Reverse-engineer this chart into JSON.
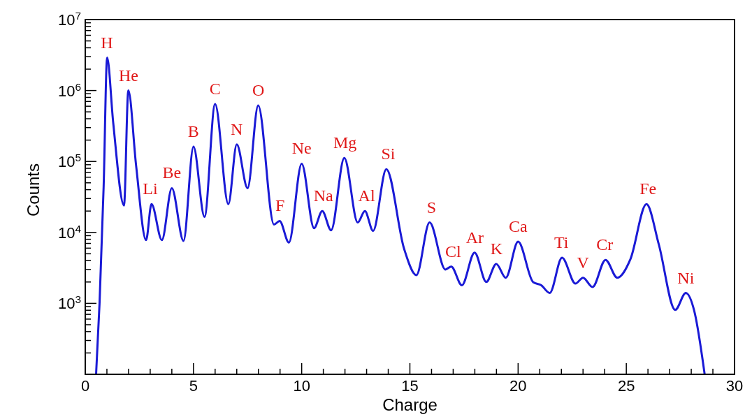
{
  "chart_data": {
    "type": "line",
    "xlabel": "Charge",
    "ylabel": "Counts",
    "log": "y",
    "grid": false,
    "line_style": "solid",
    "xlim": [
      0,
      30
    ],
    "xticks": [
      0,
      {
        "value": 1,
        "label": null
      },
      {
        "value": 2,
        "label": null
      },
      {
        "value": 3,
        "label": null
      },
      {
        "value": 4,
        "label": null
      },
      5,
      {
        "value": 6,
        "label": null
      },
      {
        "value": 7,
        "label": null
      },
      {
        "value": 8,
        "label": null
      },
      {
        "value": 9,
        "label": null
      },
      10,
      {
        "value": 11,
        "label": null
      },
      {
        "value": 12,
        "label": null
      },
      {
        "value": 13,
        "label": null
      },
      {
        "value": 14,
        "label": null
      },
      15,
      {
        "value": 16,
        "label": null
      },
      {
        "value": 17,
        "label": null
      },
      {
        "value": 18,
        "label": null
      },
      {
        "value": 19,
        "label": null
      },
      20,
      {
        "value": 21,
        "label": null
      },
      {
        "value": 22,
        "label": null
      },
      {
        "value": 23,
        "label": null
      },
      {
        "value": 24,
        "label": null
      },
      25,
      {
        "value": 26,
        "label": null
      },
      {
        "value": 27,
        "label": null
      },
      {
        "value": 28,
        "label": null
      },
      {
        "value": 29,
        "label": null
      },
      30
    ],
    "ylim": [
      100,
      10000000
    ],
    "yticks": [
      {
        "value": 100,
        "label": null
      },
      {
        "value": 200,
        "label": null
      },
      {
        "value": 300,
        "label": null
      },
      {
        "value": 400,
        "label": null
      },
      {
        "value": 500,
        "label": null
      },
      {
        "value": 600,
        "label": null
      },
      {
        "value": 700,
        "label": null
      },
      {
        "value": 800,
        "label": null
      },
      {
        "value": 900,
        "label": null
      },
      {
        "value": 1000,
        "label": "10$^{3}$"
      },
      {
        "value": 2000,
        "label": null
      },
      {
        "value": 3000,
        "label": null
      },
      {
        "value": 4000,
        "label": null
      },
      {
        "value": 5000,
        "label": null
      },
      {
        "value": 6000,
        "label": null
      },
      {
        "value": 7000,
        "label": null
      },
      {
        "value": 8000,
        "label": null
      },
      {
        "value": 9000,
        "label": null
      },
      {
        "value": 10000,
        "label": "10$^{4}$"
      },
      {
        "value": 20000,
        "label": null
      },
      {
        "value": 30000,
        "label": null
      },
      {
        "value": 40000,
        "label": null
      },
      {
        "value": 50000,
        "label": null
      },
      {
        "value": 60000,
        "label": null
      },
      {
        "value": 70000,
        "label": null
      },
      {
        "value": 80000,
        "label": null
      },
      {
        "value": 90000,
        "label": null
      },
      {
        "value": 100000,
        "label": "10$^{5}$"
      },
      {
        "value": 200000,
        "label": null
      },
      {
        "value": 300000,
        "label": null
      },
      {
        "value": 400000,
        "label": null
      },
      {
        "value": 500000,
        "label": null
      },
      {
        "value": 600000,
        "label": null
      },
      {
        "value": 700000,
        "label": null
      },
      {
        "value": 800000,
        "label": null
      },
      {
        "value": 900000,
        "label": null
      },
      {
        "value": 1000000,
        "label": "10$^{6}$"
      },
      {
        "value": 2000000,
        "label": null
      },
      {
        "value": 3000000,
        "label": null
      },
      {
        "value": 4000000,
        "label": null
      },
      {
        "value": 5000000,
        "label": null
      },
      {
        "value": 6000000,
        "label": null
      },
      {
        "value": 7000000,
        "label": null
      },
      {
        "value": 8000000,
        "label": null
      },
      {
        "value": 9000000,
        "label": null
      },
      {
        "value": 10000000,
        "label": "10$^{7}$"
      }
    ],
    "series": [
      {
        "color": "#1a1ad6",
        "x": [
          0.5,
          0.66,
          0.85,
          1.01,
          1.29,
          1.79,
          1.99,
          2.35,
          2.81,
          3.06,
          3.54,
          4.0,
          4.54,
          5.0,
          5.51,
          6.0,
          6.61,
          7.0,
          7.5,
          7.99,
          8.72,
          8.98,
          9.41,
          10.0,
          10.57,
          10.95,
          11.36,
          11.97,
          12.59,
          12.92,
          13.3,
          13.91,
          14.73,
          15.3,
          15.91,
          16.64,
          16.91,
          17.4,
          17.99,
          18.53,
          18.99,
          19.43,
          20.0,
          20.69,
          21.07,
          21.46,
          22.03,
          22.65,
          23.0,
          23.44,
          24.04,
          24.58,
          25.19,
          25.93,
          26.5,
          27.26,
          27.75,
          28.14,
          28.62
        ],
        "values": [
          100,
          1000,
          45000,
          2900000,
          355000,
          24000,
          1000000,
          87000,
          7800,
          25000,
          7800,
          42000,
          7600,
          162000,
          16600,
          646000,
          25000,
          174000,
          42000,
          617000,
          12900,
          14500,
          7200,
          93000,
          11500,
          20000,
          10700,
          112000,
          13800,
          20000,
          10500,
          78000,
          5900,
          2500,
          13800,
          3000,
          3300,
          1800,
          5200,
          2000,
          3600,
          2300,
          7400,
          2000,
          1800,
          1400,
          4400,
          1900,
          2300,
          1700,
          4100,
          2300,
          4200,
          25000,
          6800,
          810,
          1400,
          780,
          100
        ]
      }
    ],
    "annotations": [
      {
        "text": "H",
        "x": 1,
        "y": 2900000
      },
      {
        "text": "He",
        "x": 2,
        "y": 1000000
      },
      {
        "text": "Li",
        "x": 3,
        "y": 25000
      },
      {
        "text": "Be",
        "x": 4,
        "y": 42000
      },
      {
        "text": "B",
        "x": 5,
        "y": 162000
      },
      {
        "text": "C",
        "x": 6,
        "y": 646000
      },
      {
        "text": "N",
        "x": 7,
        "y": 174000
      },
      {
        "text": "O",
        "x": 8,
        "y": 617000
      },
      {
        "text": "F",
        "x": 9,
        "y": 14500
      },
      {
        "text": "Ne",
        "x": 10,
        "y": 93000
      },
      {
        "text": "Na",
        "x": 11,
        "y": 20000
      },
      {
        "text": "Mg",
        "x": 12,
        "y": 112000
      },
      {
        "text": "Al",
        "x": 13,
        "y": 20000
      },
      {
        "text": "Si",
        "x": 14,
        "y": 78000
      },
      {
        "text": "S",
        "x": 16,
        "y": 13800
      },
      {
        "text": "Cl",
        "x": 17,
        "y": 3300
      },
      {
        "text": "Ar",
        "x": 18,
        "y": 5200
      },
      {
        "text": "K",
        "x": 19,
        "y": 3600
      },
      {
        "text": "Ca",
        "x": 20,
        "y": 7400
      },
      {
        "text": "Ti",
        "x": 22,
        "y": 4400
      },
      {
        "text": "V",
        "x": 23,
        "y": 2300
      },
      {
        "text": "Cr",
        "x": 24,
        "y": 4100
      },
      {
        "text": "Fe",
        "x": 26,
        "y": 25000
      },
      {
        "text": "Ni",
        "x": 27.75,
        "y": 1400
      }
    ]
  }
}
